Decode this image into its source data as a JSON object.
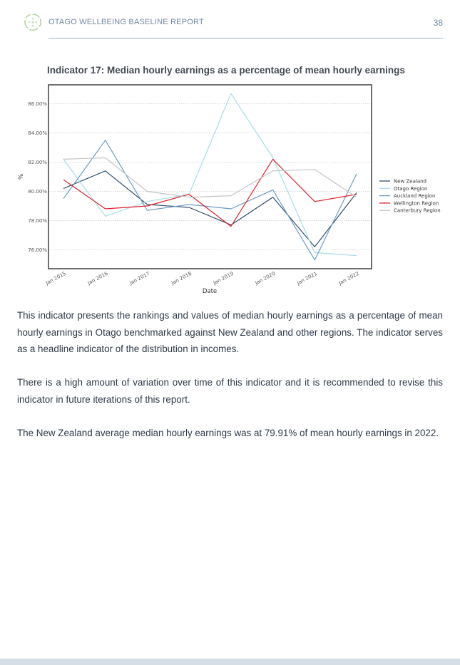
{
  "header": {
    "title": "OTAGO WELLBEING BASELINE REPORT",
    "page_number": "38"
  },
  "chart_data": {
    "type": "line",
    "title": "Indicator 17: Median hourly earnings as a percentage of mean hourly earnings",
    "xlabel": "Date",
    "ylabel": "%",
    "categories": [
      "Jan 2015",
      "Jan 2016",
      "Jan 2017",
      "Jan 2018",
      "Jan 2019",
      "Jan 2020",
      "Jan 2021",
      "Jan 2022"
    ],
    "yticks": [
      "76.00%",
      "78.00%",
      "80.00%",
      "82.00%",
      "84.00%",
      "86.00%"
    ],
    "ylim": [
      74.7,
      87.3
    ],
    "grid": "horizontal dotted",
    "legend_position": "right",
    "series": [
      {
        "name": "New Zealand",
        "color": "#2f4f6f",
        "values": [
          80.2,
          81.4,
          79.1,
          78.9,
          77.7,
          79.6,
          76.2,
          79.9
        ]
      },
      {
        "name": "Otago Region",
        "color": "#a8dbe8",
        "values": [
          82.2,
          78.3,
          79.3,
          79.8,
          86.7,
          82.3,
          75.8,
          75.6
        ]
      },
      {
        "name": "Auckland Region",
        "color": "#6a9cc4",
        "values": [
          79.5,
          83.5,
          78.7,
          79.1,
          78.8,
          80.1,
          75.3,
          81.2
        ]
      },
      {
        "name": "Wellington Region",
        "color": "#e0212b",
        "values": [
          80.8,
          78.8,
          79.0,
          79.8,
          77.6,
          82.2,
          79.3,
          79.8
        ]
      },
      {
        "name": "Canterbury Region",
        "color": "#c4c4c4",
        "values": [
          82.2,
          82.3,
          80.0,
          79.6,
          79.7,
          81.4,
          81.5,
          79.6
        ]
      }
    ]
  },
  "body": {
    "p1": "This indicator presents the rankings and values of median hourly earnings as a percentage of mean hourly earnings in Otago benchmarked against New Zealand and other regions. The indicator serves as a headline indicator of the distribution in incomes.",
    "p2": "There is a high amount of variation over time of this indicator and it is recommended to revise this indicator in future iterations of this report.",
    "p3": "The New Zealand average median hourly earnings was at 79.91% of mean hourly earnings in 2022."
  }
}
